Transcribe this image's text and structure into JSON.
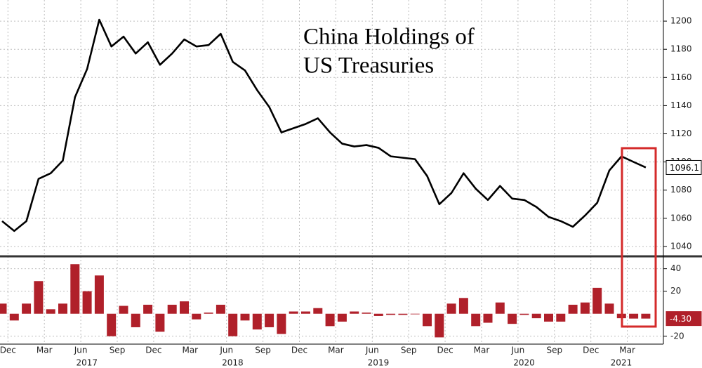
{
  "chart_data": [
    {
      "type": "line",
      "title": [
        "China Holdings of",
        "US Treasuries"
      ],
      "series": [
        {
          "color": "#000000",
          "values": [
            1058,
            1051,
            1058,
            1088,
            1092,
            1101,
            1146,
            1166,
            1201,
            1182,
            1189,
            1177,
            1185,
            1169,
            1177,
            1187,
            1182,
            1183,
            1191,
            1171,
            1165,
            1151,
            1139,
            1121,
            1124,
            1127,
            1131,
            1121,
            1113,
            1111,
            1112,
            1110,
            1104,
            1103,
            1102,
            1090,
            1070,
            1078,
            1092,
            1081,
            1073,
            1083,
            1074,
            1073,
            1068,
            1061,
            1058,
            1054,
            1062,
            1071,
            1094,
            1104,
            1100,
            1096.1
          ],
          "value_labels": [
            null,
            null,
            null,
            null,
            null,
            null,
            null,
            null,
            null,
            null,
            null,
            null,
            null,
            null,
            null,
            null,
            null,
            null,
            null,
            null,
            null,
            null,
            null,
            null,
            null,
            null,
            null,
            null,
            null,
            null,
            null,
            null,
            null,
            null,
            null,
            null,
            null,
            null,
            null,
            null,
            null,
            null,
            null,
            null,
            null,
            null,
            null,
            null,
            null,
            null,
            null,
            null,
            null,
            "1096.1"
          ]
        }
      ],
      "ylim": [
        1033,
        1215
      ],
      "yticks": [
        1040,
        1060,
        1080,
        1100,
        1120,
        1140,
        1160,
        1180,
        1200
      ],
      "grid": true
    },
    {
      "type": "bar",
      "categories": [
        null,
        "Dec",
        null,
        null,
        "Mar",
        null,
        null,
        "Jun",
        null,
        null,
        "Sep",
        null,
        null,
        "Dec",
        null,
        null,
        "Mar",
        null,
        null,
        "Jun",
        null,
        null,
        "Sep",
        null,
        null,
        "Dec",
        null,
        null,
        "Mar",
        null,
        null,
        "Jun",
        null,
        null,
        "Sep",
        null,
        null,
        "Dec",
        null,
        null,
        "Mar",
        null,
        null,
        "Jun",
        null,
        null,
        "Sep",
        null,
        null,
        "Dec",
        null,
        null,
        "Mar",
        null
      ],
      "years": [
        "2017",
        "2018",
        "2019",
        "2020",
        "2021"
      ],
      "series": [
        {
          "color": "#b0202a",
          "values": [
            9,
            -6,
            9,
            29,
            4,
            9,
            44,
            20,
            34,
            -20,
            7,
            -12,
            8,
            -16,
            8,
            11,
            -5,
            1,
            8,
            -20,
            -6,
            -14,
            -12,
            -18,
            2,
            2,
            5,
            -11,
            -7,
            2,
            1,
            -2,
            -1,
            -1,
            0,
            -11,
            -21,
            9,
            14,
            -11,
            -8,
            10,
            -9,
            -1,
            -4,
            -7,
            -7,
            8,
            10,
            23,
            9,
            -4,
            -4.3,
            -4.3
          ],
          "value_labels": [
            null,
            null,
            null,
            null,
            null,
            null,
            null,
            null,
            null,
            null,
            null,
            null,
            null,
            null,
            null,
            null,
            null,
            null,
            null,
            null,
            null,
            null,
            null,
            null,
            null,
            null,
            null,
            null,
            null,
            null,
            null,
            null,
            null,
            null,
            null,
            null,
            null,
            null,
            null,
            null,
            null,
            null,
            null,
            null,
            null,
            null,
            null,
            null,
            null,
            null,
            null,
            null,
            null,
            "-4.30"
          ]
        }
      ],
      "ylim": [
        -27,
        51
      ],
      "yticks": [
        -20,
        20,
        40
      ],
      "grid": true
    }
  ]
}
